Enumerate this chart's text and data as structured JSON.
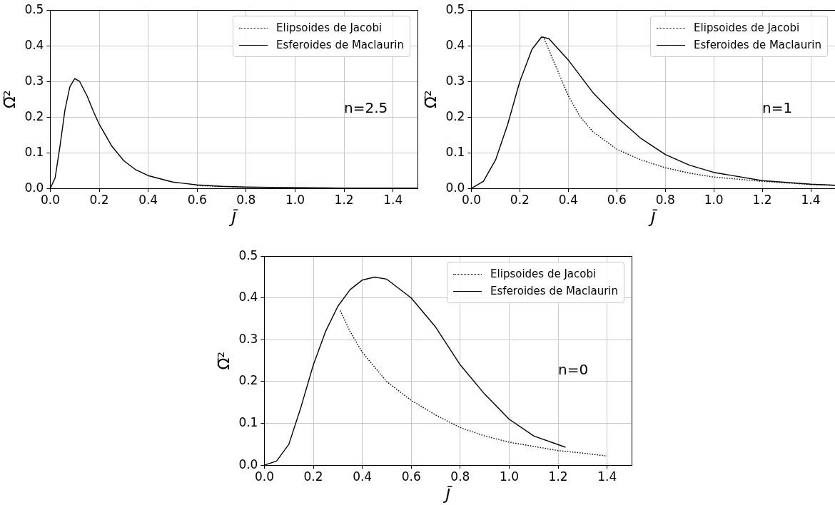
{
  "chart_data": [
    {
      "type": "line",
      "xlabel": "J̄",
      "ylabel": "Ω̅²",
      "annotations": [
        "n=2.5"
      ],
      "xlim": [
        0,
        1.5
      ],
      "ylim": [
        0,
        0.5
      ],
      "xticks": [
        {
          "value": 0,
          "label": "0.0"
        },
        {
          "value": 0.2,
          "label": "0.2"
        },
        {
          "value": 0.4,
          "label": "0.4"
        },
        {
          "value": 0.6,
          "label": "0.6"
        },
        {
          "value": 0.8,
          "label": "0.8"
        },
        {
          "value": 1,
          "label": "1.0"
        },
        {
          "value": 1.2,
          "label": "1.2"
        },
        {
          "value": 1.4,
          "label": "1.4"
        }
      ],
      "yticks": [
        {
          "value": 0,
          "label": "0.0"
        },
        {
          "value": 0.1,
          "label": "0.1"
        },
        {
          "value": 0.2,
          "label": "0.2"
        },
        {
          "value": 0.3,
          "label": "0.3"
        },
        {
          "value": 0.4,
          "label": "0.4"
        },
        {
          "value": 0.5,
          "label": "0.5"
        }
      ],
      "grid": true,
      "legend": "top right",
      "marker": "none",
      "series": [
        {
          "name": "Elipsoides de Jacobi",
          "color": "#000000",
          "line_style": "dotted",
          "x": [
            0.6,
            0.8,
            1.0,
            1.2,
            1.5
          ],
          "values": [
            0.008,
            0.003,
            0.002,
            0.001,
            0
          ]
        },
        {
          "name": "Esferoides de Maclaurin",
          "color": "#000000",
          "line_style": "solid",
          "x": [
            0,
            0.02,
            0.04,
            0.06,
            0.08,
            0.1,
            0.12,
            0.15,
            0.18,
            0.2,
            0.25,
            0.3,
            0.35,
            0.4,
            0.5,
            0.6,
            0.7,
            0.8,
            1.0,
            1.2,
            1.5
          ],
          "values": [
            0,
            0.03,
            0.12,
            0.22,
            0.285,
            0.308,
            0.3,
            0.26,
            0.21,
            0.18,
            0.12,
            0.078,
            0.052,
            0.036,
            0.018,
            0.01,
            0.006,
            0.004,
            0.002,
            0.001,
            0.001
          ]
        }
      ]
    },
    {
      "type": "line",
      "xlabel": "J̄",
      "ylabel": "Ω̅²",
      "annotations": [
        "n=1"
      ],
      "xlim": [
        0,
        1.5
      ],
      "ylim": [
        0,
        0.5
      ],
      "xticks": [
        {
          "value": 0,
          "label": "0.0"
        },
        {
          "value": 0.2,
          "label": "0.2"
        },
        {
          "value": 0.4,
          "label": "0.4"
        },
        {
          "value": 0.6,
          "label": "0.6"
        },
        {
          "value": 0.8,
          "label": "0.8"
        },
        {
          "value": 1,
          "label": "1.0"
        },
        {
          "value": 1.2,
          "label": "1.2"
        },
        {
          "value": 1.4,
          "label": "1.4"
        }
      ],
      "yticks": [
        {
          "value": 0,
          "label": "0.0"
        },
        {
          "value": 0.1,
          "label": "0.1"
        },
        {
          "value": 0.2,
          "label": "0.2"
        },
        {
          "value": 0.3,
          "label": "0.3"
        },
        {
          "value": 0.4,
          "label": "0.4"
        },
        {
          "value": 0.5,
          "label": "0.5"
        }
      ],
      "grid": true,
      "legend": "top right",
      "marker": "none",
      "series": [
        {
          "name": "Elipsoides de Jacobi",
          "color": "#000000",
          "line_style": "dotted",
          "x": [
            0.3,
            0.35,
            0.4,
            0.45,
            0.5,
            0.6,
            0.7,
            0.8,
            0.9,
            1.0,
            1.2,
            1.4,
            1.5
          ],
          "values": [
            0.42,
            0.34,
            0.26,
            0.2,
            0.16,
            0.11,
            0.08,
            0.058,
            0.043,
            0.032,
            0.02,
            0.011,
            0.009
          ]
        },
        {
          "name": "Esferoides de Maclaurin",
          "color": "#000000",
          "line_style": "solid",
          "x": [
            0,
            0.05,
            0.1,
            0.15,
            0.2,
            0.25,
            0.29,
            0.32,
            0.4,
            0.5,
            0.6,
            0.7,
            0.8,
            0.9,
            1.0,
            1.2,
            1.4,
            1.5
          ],
          "values": [
            0,
            0.02,
            0.08,
            0.18,
            0.3,
            0.39,
            0.425,
            0.42,
            0.36,
            0.27,
            0.2,
            0.14,
            0.095,
            0.065,
            0.045,
            0.022,
            0.012,
            0.009
          ]
        }
      ]
    },
    {
      "type": "line",
      "xlabel": "J̄",
      "ylabel": "Ω̅²",
      "annotations": [
        "n=0"
      ],
      "xlim": [
        0,
        1.5
      ],
      "ylim": [
        0,
        0.5
      ],
      "xticks": [
        {
          "value": 0,
          "label": "0.0"
        },
        {
          "value": 0.2,
          "label": "0.2"
        },
        {
          "value": 0.4,
          "label": "0.4"
        },
        {
          "value": 0.6,
          "label": "0.6"
        },
        {
          "value": 0.8,
          "label": "0.8"
        },
        {
          "value": 1,
          "label": "1.0"
        },
        {
          "value": 1.2,
          "label": "1.2"
        },
        {
          "value": 1.4,
          "label": "1.4"
        }
      ],
      "yticks": [
        {
          "value": 0,
          "label": "0.0"
        },
        {
          "value": 0.1,
          "label": "0.1"
        },
        {
          "value": 0.2,
          "label": "0.2"
        },
        {
          "value": 0.3,
          "label": "0.3"
        },
        {
          "value": 0.4,
          "label": "0.4"
        },
        {
          "value": 0.5,
          "label": "0.5"
        }
      ],
      "grid": true,
      "legend": "top right",
      "marker": "none",
      "series": [
        {
          "name": "Elipsoides de Jacobi",
          "color": "#000000",
          "line_style": "dotted",
          "x": [
            0.31,
            0.35,
            0.4,
            0.5,
            0.6,
            0.7,
            0.8,
            0.9,
            1.0,
            1.1,
            1.2,
            1.3,
            1.4
          ],
          "values": [
            0.37,
            0.32,
            0.27,
            0.2,
            0.155,
            0.12,
            0.09,
            0.07,
            0.055,
            0.045,
            0.035,
            0.029,
            0.022
          ]
        },
        {
          "name": "Esferoides de Maclaurin",
          "color": "#000000",
          "line_style": "solid",
          "x": [
            0,
            0.05,
            0.1,
            0.15,
            0.2,
            0.25,
            0.3,
            0.35,
            0.4,
            0.45,
            0.5,
            0.6,
            0.7,
            0.8,
            0.9,
            1.0,
            1.1,
            1.23
          ],
          "values": [
            0,
            0.01,
            0.05,
            0.14,
            0.24,
            0.32,
            0.38,
            0.42,
            0.443,
            0.45,
            0.445,
            0.4,
            0.33,
            0.24,
            0.17,
            0.11,
            0.07,
            0.043
          ]
        }
      ]
    }
  ]
}
